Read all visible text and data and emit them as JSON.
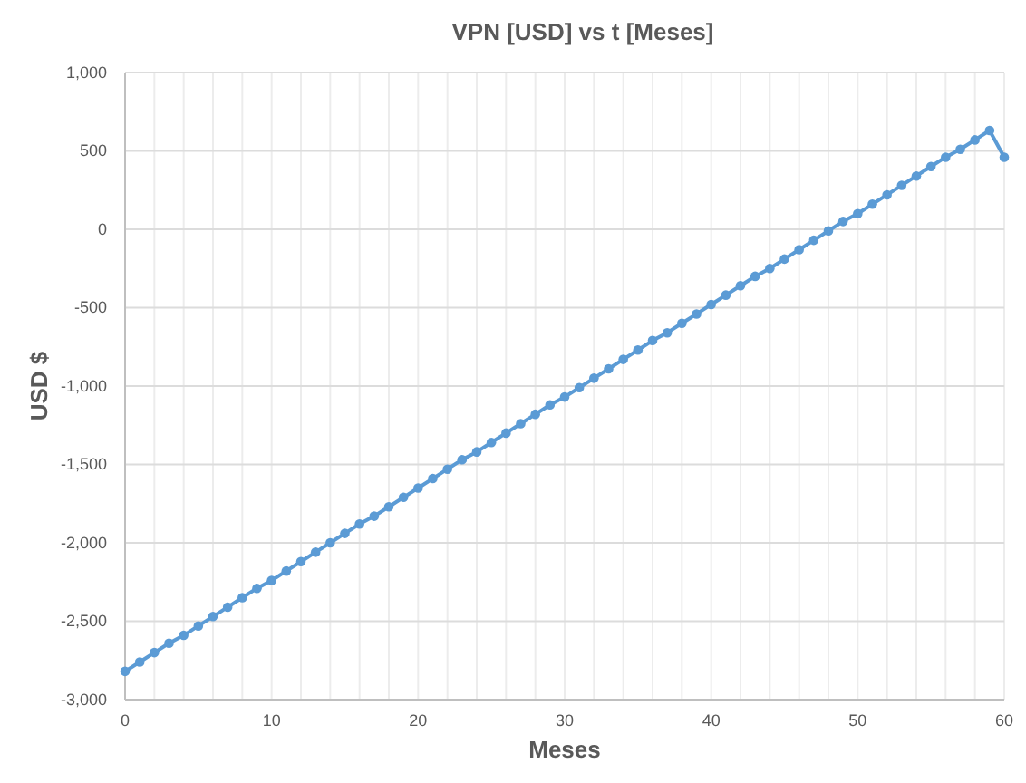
{
  "chart_data": {
    "type": "line",
    "title": "VPN [USD] vs t [Meses]",
    "xlabel": "Meses",
    "ylabel": "USD $",
    "x": [
      0,
      1,
      2,
      3,
      4,
      5,
      6,
      7,
      8,
      9,
      10,
      11,
      12,
      13,
      14,
      15,
      16,
      17,
      18,
      19,
      20,
      21,
      22,
      23,
      24,
      25,
      26,
      27,
      28,
      29,
      30,
      31,
      32,
      33,
      34,
      35,
      36,
      37,
      38,
      39,
      40,
      41,
      42,
      43,
      44,
      45,
      46,
      47,
      48,
      49,
      50,
      51,
      52,
      53,
      54,
      55,
      56,
      57,
      58,
      59,
      60
    ],
    "series": [
      {
        "color": "#5b9bd5",
        "values": [
          -2820,
          -2760,
          -2700,
          -2640,
          -2590,
          -2530,
          -2470,
          -2410,
          -2350,
          -2290,
          -2240,
          -2180,
          -2120,
          -2060,
          -2000,
          -1940,
          -1880,
          -1830,
          -1770,
          -1710,
          -1650,
          -1590,
          -1530,
          -1470,
          -1420,
          -1360,
          -1300,
          -1240,
          -1180,
          -1120,
          -1070,
          -1010,
          -950,
          -890,
          -830,
          -770,
          -710,
          -660,
          -600,
          -540,
          -480,
          -420,
          -360,
          -300,
          -250,
          -190,
          -130,
          -70,
          -10,
          50,
          100,
          160,
          220,
          280,
          340,
          400,
          460,
          510,
          570,
          630,
          460
        ]
      }
    ],
    "xlim": [
      0,
      60
    ],
    "xticks": [
      0,
      {
        "value": 2,
        "label": null
      },
      {
        "value": 4,
        "label": null
      },
      {
        "value": 6,
        "label": null
      },
      {
        "value": 8,
        "label": null
      },
      10,
      {
        "value": 12,
        "label": null
      },
      {
        "value": 14,
        "label": null
      },
      {
        "value": 16,
        "label": null
      },
      {
        "value": 18,
        "label": null
      },
      20,
      {
        "value": 22,
        "label": null
      },
      {
        "value": 24,
        "label": null
      },
      {
        "value": 26,
        "label": null
      },
      {
        "value": 28,
        "label": null
      },
      30,
      {
        "value": 32,
        "label": null
      },
      {
        "value": 34,
        "label": null
      },
      {
        "value": 36,
        "label": null
      },
      {
        "value": 38,
        "label": null
      },
      40,
      {
        "value": 42,
        "label": null
      },
      {
        "value": 44,
        "label": null
      },
      {
        "value": 46,
        "label": null
      },
      {
        "value": 48,
        "label": null
      },
      50,
      {
        "value": 52,
        "label": null
      },
      {
        "value": 54,
        "label": null
      },
      {
        "value": 56,
        "label": null
      },
      {
        "value": 58,
        "label": null
      },
      60
    ],
    "ylim": [
      -3000,
      1000
    ],
    "yticks": [
      {
        "value": -3000,
        "label": "-3,000"
      },
      {
        "value": -2500,
        "label": "-2,500"
      },
      {
        "value": -2000,
        "label": "-2,000"
      },
      {
        "value": -1500,
        "label": "-1,500"
      },
      {
        "value": -1000,
        "label": "-1,000"
      },
      -500,
      0,
      500,
      {
        "value": 1000,
        "label": "1,000"
      }
    ],
    "grid": true,
    "marker": "circle",
    "line_style": "solid"
  }
}
